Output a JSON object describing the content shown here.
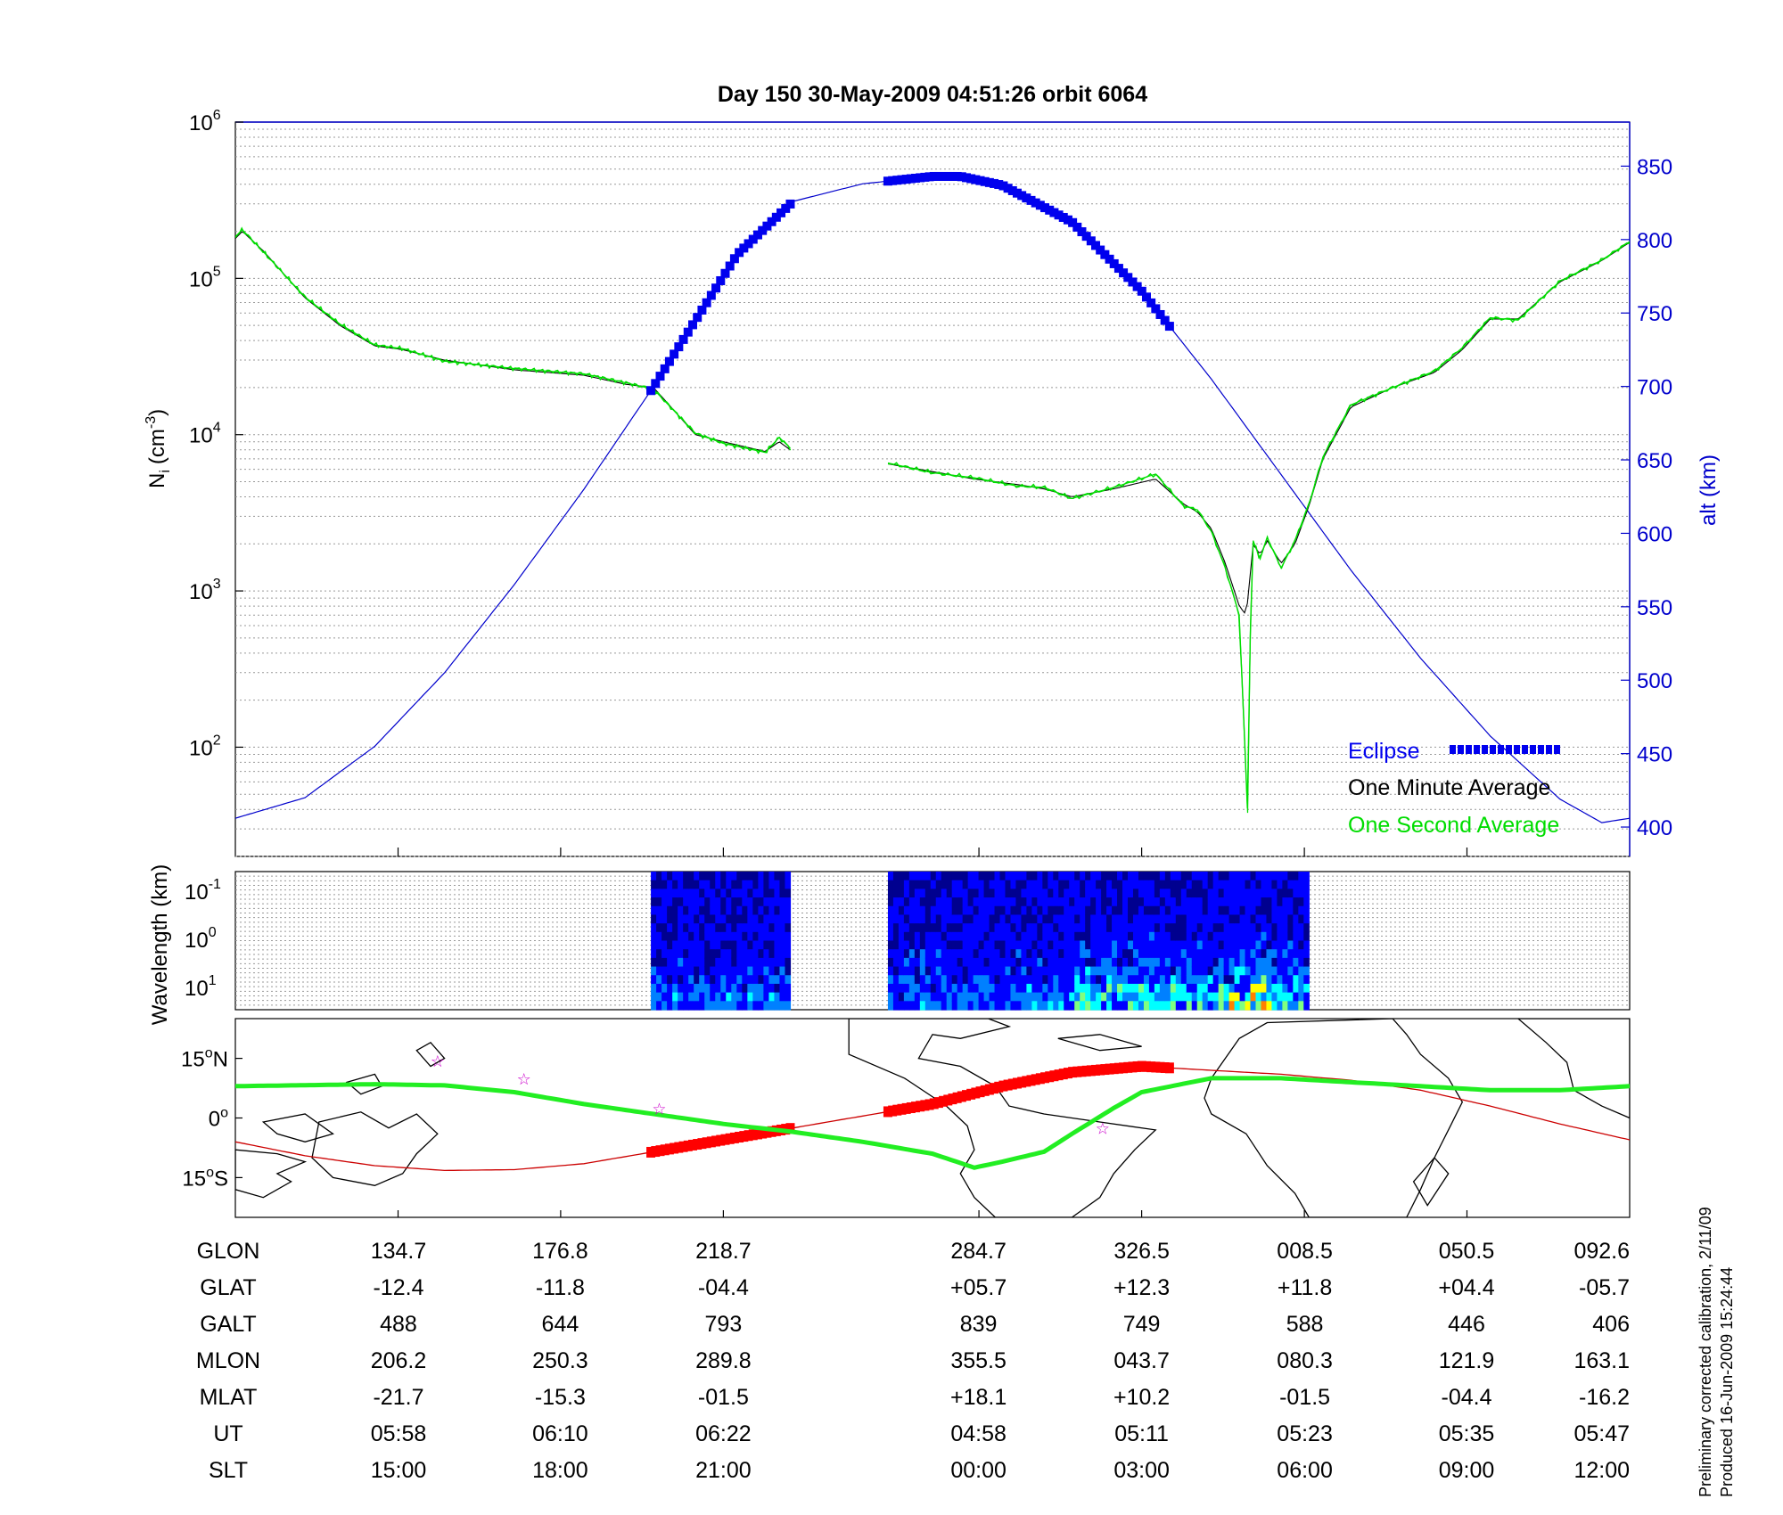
{
  "title": "Day 150  30-May-2009 04:51:26   orbit 6064",
  "colors": {
    "altitude": "#0000cc",
    "eclipse": "#0000ee",
    "one_minute": "#000000",
    "one_second": "#00dd00",
    "track": "#ff0000",
    "star": "#cc00cc",
    "orbit_path": "#cc0000",
    "magnetic_equator": "#22ee22"
  },
  "chart_data": [
    {
      "id": "density",
      "type": "line",
      "yscale": "log",
      "ylabel_left": "N",
      "ylabel_left_sub": "i",
      "ylabel_left_unit": "(cm",
      "ylabel_left_sup": "-3",
      "ylabel_left_close": ")",
      "ylim_left": [
        20,
        1000000
      ],
      "yticks_left": [
        {
          "base": "10",
          "exp": "6",
          "value": 1000000
        },
        {
          "base": "10",
          "exp": "5",
          "value": 100000
        },
        {
          "base": "10",
          "exp": "4",
          "value": 10000
        },
        {
          "base": "10",
          "exp": "3",
          "value": 1000
        },
        {
          "base": "10",
          "exp": "2",
          "value": 100
        }
      ],
      "ylabel_right": "alt (km)",
      "ylim_right": [
        380,
        880
      ],
      "yticks_right": [
        "850",
        "800",
        "750",
        "700",
        "650",
        "600",
        "550",
        "500",
        "450",
        "400"
      ],
      "xlim": [
        0,
        1
      ],
      "segment_bounds": [
        [
          0.298,
          0.398
        ],
        [
          0.468,
          0.77
        ]
      ],
      "altitude": {
        "name": "alt",
        "x": [
          0,
          0.05,
          0.1,
          0.15,
          0.2,
          0.25,
          0.3,
          0.33,
          0.36,
          0.4,
          0.45,
          0.5,
          0.52,
          0.55,
          0.6,
          0.65,
          0.7,
          0.75,
          0.8,
          0.85,
          0.9,
          0.95,
          0.98,
          1.0
        ],
        "values": [
          406,
          420,
          455,
          505,
          565,
          630,
          700,
          745,
          790,
          826,
          838,
          843,
          843,
          837,
          812,
          765,
          705,
          640,
          575,
          515,
          462,
          419,
          403,
          406
        ]
      },
      "eclipse": {
        "name": "Eclipse",
        "segments": [
          [
            0.298,
            0.398
          ],
          [
            0.468,
            0.67
          ]
        ]
      },
      "one_minute": {
        "name": "One Minute Average",
        "segments": [
          {
            "x": [
              0,
              0.005,
              0.02,
              0.05,
              0.075,
              0.1,
              0.12,
              0.15,
              0.2,
              0.25,
              0.28,
              0.3,
              0.33,
              0.35,
              0.38,
              0.39,
              0.398
            ],
            "values": [
              180000,
              200000,
              150000,
              75000,
              50000,
              37000,
              35000,
              30000,
              26000,
              24000,
              21000,
              20000,
              10000,
              9000,
              7800,
              9000,
              8000
            ]
          },
          {
            "x": [
              0.468,
              0.5,
              0.53,
              0.56,
              0.58,
              0.6,
              0.63,
              0.66,
              0.68,
              0.69,
              0.7,
              0.71,
              0.72,
              0.725,
              0.73,
              0.735,
              0.74,
              0.75,
              0.76,
              0.77,
              0.78,
              0.8,
              0.83,
              0.86,
              0.88,
              0.9,
              0.92,
              0.95,
              0.98,
              1.0
            ],
            "values": [
              6500,
              5800,
              5200,
              4800,
              4500,
              4000,
              4500,
              5200,
              3600,
              3200,
              2500,
              1500,
              800,
              700,
              2000,
              1700,
              2100,
              1500,
              2000,
              3500,
              7000,
              15000,
              20000,
              25000,
              35000,
              55000,
              55000,
              95000,
              130000,
              170000
            ]
          }
        ]
      },
      "one_second": {
        "name": "One Second Average",
        "segments": [
          {
            "x": [
              0,
              0.005,
              0.02,
              0.05,
              0.075,
              0.1,
              0.12,
              0.15,
              0.2,
              0.25,
              0.28,
              0.3,
              0.33,
              0.35,
              0.38,
              0.39,
              0.398
            ],
            "values": [
              185000,
              205000,
              148000,
              76000,
              51000,
              37500,
              35500,
              29500,
              26500,
              24500,
              21500,
              19500,
              10200,
              8800,
              7700,
              9600,
              8200
            ]
          },
          {
            "x": [
              0.468,
              0.5,
              0.53,
              0.56,
              0.58,
              0.6,
              0.63,
              0.66,
              0.68,
              0.69,
              0.7,
              0.71,
              0.72,
              0.726,
              0.728,
              0.73,
              0.735,
              0.74,
              0.75,
              0.76,
              0.77,
              0.78,
              0.8,
              0.83,
              0.86,
              0.88,
              0.9,
              0.92,
              0.95,
              0.98,
              1.0
            ],
            "values": [
              6600,
              5700,
              5300,
              4700,
              4600,
              3900,
              4600,
              5600,
              3500,
              3300,
              2400,
              1400,
              700,
              38,
              600,
              2100,
              1600,
              2200,
              1400,
              2100,
              3600,
              7200,
              15500,
              20000,
              25500,
              36000,
              56000,
              54000,
              96000,
              131000,
              172000
            ]
          }
        ]
      },
      "legend": [
        "Eclipse",
        "One Minute Average",
        "One Second Average"
      ],
      "legend_position": "bottom-right"
    },
    {
      "id": "spectrogram",
      "type": "heatmap",
      "ylabel": "Wavelength (km)",
      "yticks": [
        {
          "base": "10",
          "exp": "-1"
        },
        {
          "base": "10",
          "exp": "0"
        },
        {
          "base": "10",
          "exp": "1"
        }
      ],
      "segments": [
        [
          0.298,
          0.398
        ],
        [
          0.468,
          0.77
        ]
      ],
      "colormap": [
        "#00008f",
        "#0000ff",
        "#0080ff",
        "#00ffff",
        "#80ff80",
        "#ffff00",
        "#ff8000",
        "#ff0000"
      ]
    },
    {
      "id": "ground_track",
      "type": "map",
      "yticks": [
        {
          "label": "15",
          "suffix": "N",
          "lat": 15
        },
        {
          "label": "0",
          "suffix": "",
          "lat": 0
        },
        {
          "label": "15",
          "suffix": "S",
          "lat": -15
        }
      ],
      "ylim": [
        -25,
        25
      ],
      "orbit_track": {
        "x": [
          0,
          0.05,
          0.1,
          0.15,
          0.2,
          0.25,
          0.3,
          0.35,
          0.4,
          0.45,
          0.5,
          0.55,
          0.6,
          0.65,
          0.7,
          0.75,
          0.8,
          0.85,
          0.9,
          0.95,
          1.0
        ],
        "lat": [
          -6,
          -9.5,
          -12,
          -13.2,
          -13,
          -11.5,
          -8.5,
          -5.5,
          -2.5,
          0.5,
          3.5,
          8,
          11.5,
          13,
          12,
          11,
          9.5,
          7,
          3,
          -1.5,
          -5.5
        ]
      },
      "eclipse_track": {
        "segments": [
          [
            0.298,
            0.398
          ],
          [
            0.468,
            0.67
          ]
        ]
      },
      "magnetic_equator": {
        "x": [
          0,
          0.1,
          0.15,
          0.2,
          0.25,
          0.3,
          0.35,
          0.4,
          0.45,
          0.5,
          0.53,
          0.55,
          0.58,
          0.6,
          0.63,
          0.65,
          0.7,
          0.75,
          0.8,
          0.85,
          0.9,
          0.95,
          1.0
        ],
        "lat": [
          8,
          8.5,
          8.2,
          6.5,
          3.5,
          1,
          -1.5,
          -3.5,
          -6,
          -9,
          -12.5,
          -11,
          -8.5,
          -4,
          2.5,
          6.5,
          10,
          10,
          9,
          8,
          7,
          7,
          8
        ]
      },
      "stars": [
        {
          "x": 0.145,
          "lat": 14.5
        },
        {
          "x": 0.207,
          "lat": 10
        },
        {
          "x": 0.304,
          "lat": 2.5
        },
        {
          "x": 0.622,
          "lat": -2.5
        }
      ],
      "land": [
        [
          [
            0.0,
            0.86
          ],
          [
            0.02,
            0.9
          ],
          [
            0.04,
            0.82
          ],
          [
            0.03,
            0.78
          ],
          [
            0.05,
            0.72
          ],
          [
            0.03,
            0.68
          ],
          [
            0.0,
            0.66
          ]
        ],
        [
          [
            0.06,
            0.52
          ],
          [
            0.09,
            0.47
          ],
          [
            0.11,
            0.55
          ],
          [
            0.13,
            0.48
          ],
          [
            0.145,
            0.58
          ],
          [
            0.13,
            0.68
          ],
          [
            0.12,
            0.78
          ],
          [
            0.1,
            0.84
          ],
          [
            0.07,
            0.8
          ],
          [
            0.055,
            0.7
          ]
        ],
        [
          [
            0.02,
            0.52
          ],
          [
            0.05,
            0.48
          ],
          [
            0.07,
            0.58
          ],
          [
            0.05,
            0.62
          ],
          [
            0.03,
            0.58
          ]
        ],
        [
          [
            0.08,
            0.32
          ],
          [
            0.1,
            0.28
          ],
          [
            0.105,
            0.34
          ],
          [
            0.09,
            0.38
          ]
        ],
        [
          [
            0.13,
            0.16
          ],
          [
            0.14,
            0.12
          ],
          [
            0.15,
            0.2
          ],
          [
            0.14,
            0.24
          ]
        ],
        [
          [
            0.44,
            0.0
          ],
          [
            0.54,
            0.0
          ],
          [
            0.555,
            0.04
          ],
          [
            0.52,
            0.1
          ],
          [
            0.5,
            0.08
          ],
          [
            0.49,
            0.2
          ],
          [
            0.52,
            0.24
          ],
          [
            0.545,
            0.34
          ],
          [
            0.555,
            0.44
          ],
          [
            0.58,
            0.48
          ],
          [
            0.62,
            0.52
          ],
          [
            0.66,
            0.56
          ],
          [
            0.645,
            0.66
          ],
          [
            0.63,
            0.78
          ],
          [
            0.62,
            0.9
          ],
          [
            0.6,
            1.0
          ],
          [
            0.545,
            1.0
          ],
          [
            0.53,
            0.9
          ],
          [
            0.52,
            0.78
          ],
          [
            0.53,
            0.66
          ],
          [
            0.525,
            0.54
          ],
          [
            0.51,
            0.44
          ],
          [
            0.48,
            0.3
          ],
          [
            0.44,
            0.18
          ]
        ],
        [
          [
            0.59,
            0.1
          ],
          [
            0.62,
            0.08
          ],
          [
            0.65,
            0.14
          ],
          [
            0.62,
            0.16
          ]
        ],
        [
          [
            0.7,
            0.3
          ],
          [
            0.72,
            0.1
          ],
          [
            0.74,
            0.02
          ],
          [
            0.83,
            0.0
          ],
          [
            0.84,
            0.08
          ],
          [
            0.85,
            0.18
          ],
          [
            0.87,
            0.3
          ],
          [
            0.88,
            0.42
          ],
          [
            0.87,
            0.56
          ],
          [
            0.86,
            0.7
          ],
          [
            0.85,
            0.86
          ],
          [
            0.84,
            1.0
          ],
          [
            0.77,
            1.0
          ],
          [
            0.76,
            0.88
          ],
          [
            0.74,
            0.74
          ],
          [
            0.725,
            0.58
          ],
          [
            0.7,
            0.48
          ],
          [
            0.695,
            0.4
          ]
        ],
        [
          [
            0.845,
            0.82
          ],
          [
            0.86,
            0.7
          ],
          [
            0.87,
            0.78
          ],
          [
            0.855,
            0.94
          ]
        ],
        [
          [
            0.92,
            0.0
          ],
          [
            1.0,
            0.0
          ],
          [
            1.0,
            0.5
          ],
          [
            0.98,
            0.44
          ],
          [
            0.96,
            0.36
          ],
          [
            0.955,
            0.22
          ],
          [
            0.94,
            0.12
          ]
        ]
      ]
    }
  ],
  "table": {
    "row_labels": [
      "GLON",
      "GLAT",
      "GALT",
      "MLON",
      "MLAT",
      "UT",
      "SLT"
    ],
    "columns": [
      {
        "x": 0.117,
        "values": [
          "134.7",
          "-12.4",
          "488",
          "206.2",
          "-21.7",
          "05:58",
          "15:00"
        ]
      },
      {
        "x": 0.233,
        "values": [
          "176.8",
          "-11.8",
          "644",
          "250.3",
          "-15.3",
          "06:10",
          "18:00"
        ]
      },
      {
        "x": 0.35,
        "values": [
          "218.7",
          "-04.4",
          "793",
          "289.8",
          "-01.5",
          "06:22",
          "21:00"
        ]
      },
      {
        "x": 0.533,
        "values": [
          "284.7",
          "+05.7",
          "839",
          "355.5",
          "+18.1",
          "04:58",
          "00:00"
        ]
      },
      {
        "x": 0.65,
        "values": [
          "326.5",
          "+12.3",
          "749",
          "043.7",
          "+10.2",
          "05:11",
          "03:00"
        ]
      },
      {
        "x": 0.767,
        "values": [
          "008.5",
          "+11.8",
          "588",
          "080.3",
          "-01.5",
          "05:23",
          "06:00"
        ]
      },
      {
        "x": 0.883,
        "values": [
          "050.5",
          "+04.4",
          "446",
          "121.9",
          "-04.4",
          "05:35",
          "09:00"
        ]
      },
      {
        "x": 1.0,
        "values": [
          "092.6",
          "-05.7",
          "406",
          "163.1",
          "-16.2",
          "05:47",
          "12:00"
        ]
      }
    ]
  },
  "footer": {
    "line1": "Preliminary corrected calibration, 2/11/09",
    "line2": "Produced 16-Jun-2009 15:24:44"
  }
}
